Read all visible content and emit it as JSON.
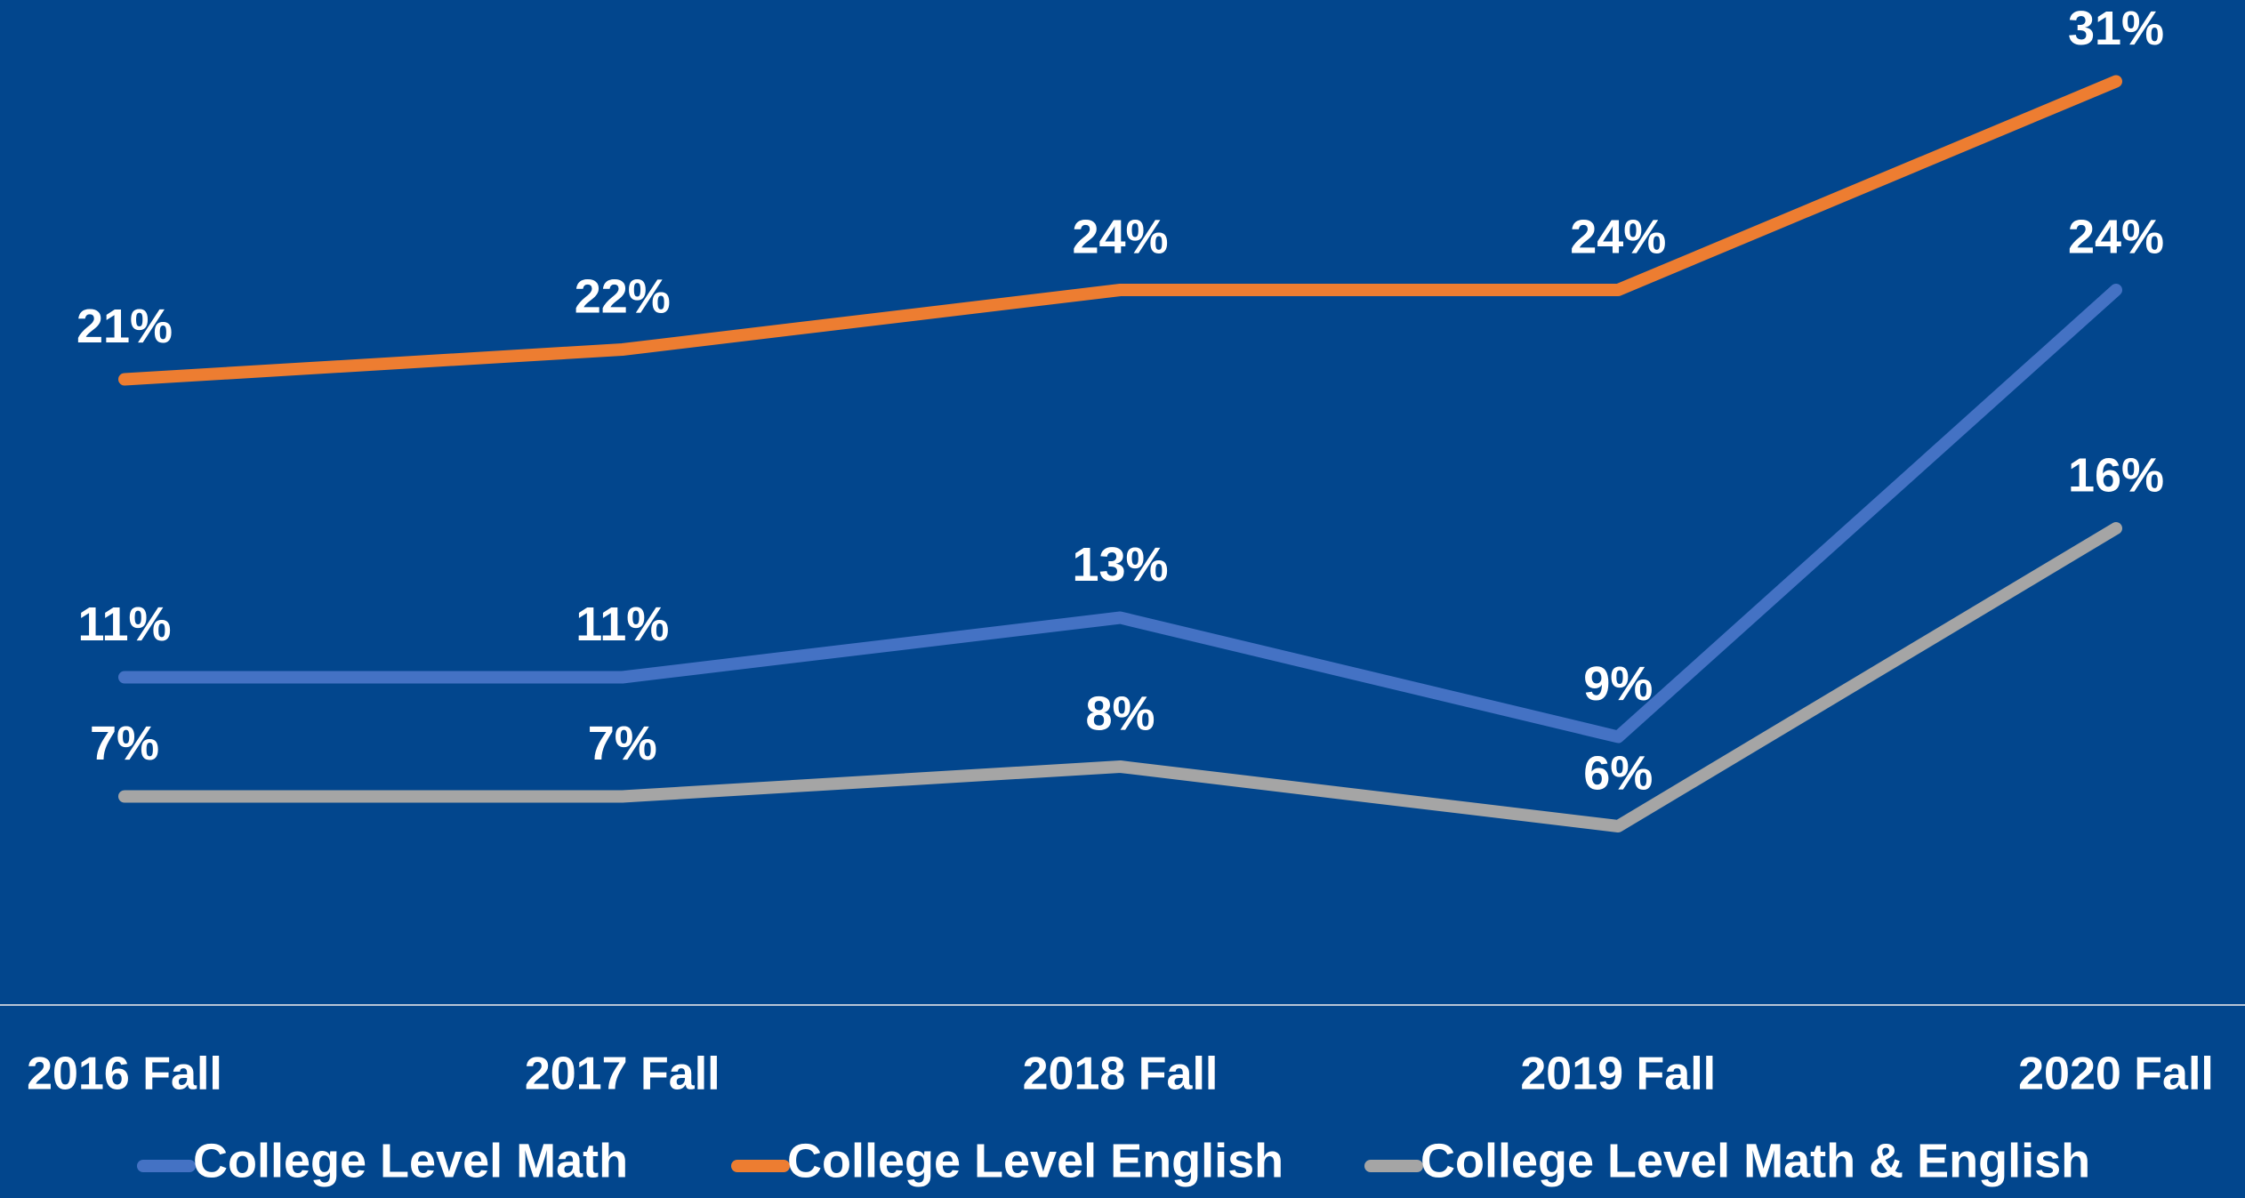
{
  "chart_data": {
    "type": "line",
    "categories": [
      "2016 Fall",
      "2017 Fall",
      "2018 Fall",
      "2019 Fall",
      "2020 Fall"
    ],
    "series": [
      {
        "name": "College Level Math",
        "color": "#4472c4",
        "values": [
          11,
          11,
          13,
          9,
          24
        ],
        "value_labels": [
          "11%",
          "11%",
          "13%",
          "9%",
          "24%"
        ]
      },
      {
        "name": "College Level English",
        "color": "#ed7d31",
        "values": [
          21,
          22,
          24,
          24,
          31
        ],
        "value_labels": [
          "21%",
          "22%",
          "24%",
          "24%",
          "31%"
        ]
      },
      {
        "name": "College Level Math & English",
        "color": "#a5a5a5",
        "values": [
          7,
          7,
          8,
          6,
          16
        ],
        "value_labels": [
          "7%",
          "7%",
          "8%",
          "6%",
          "16%"
        ]
      }
    ],
    "legend": "bottom"
  }
}
